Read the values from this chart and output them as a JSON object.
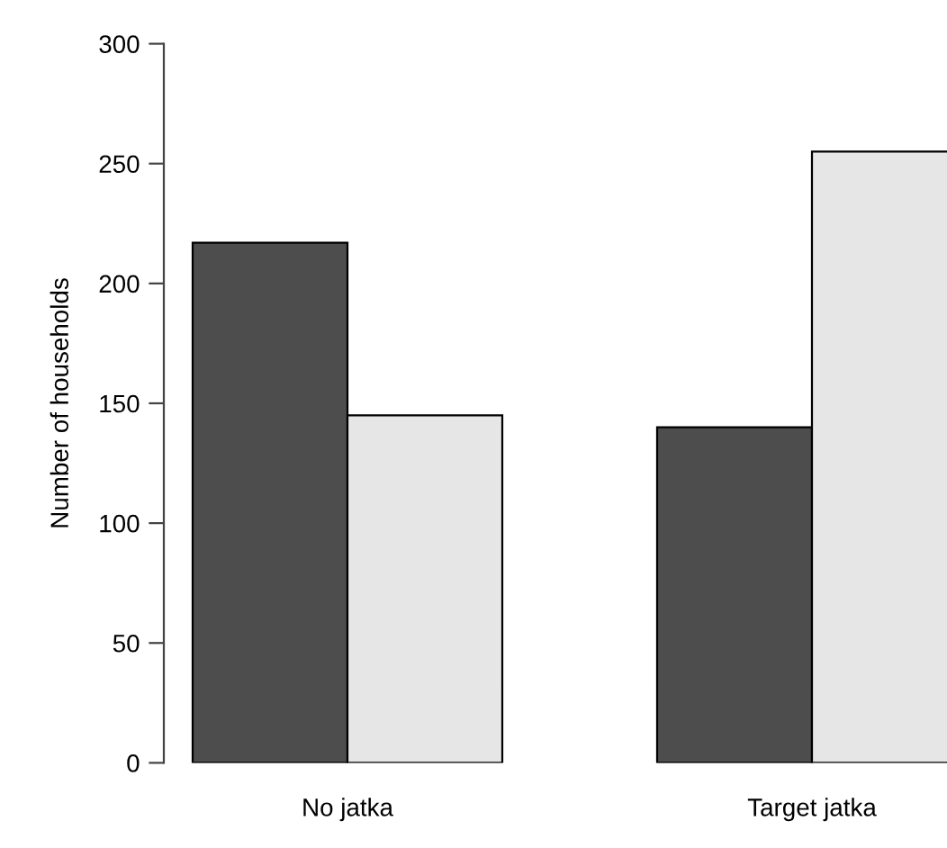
{
  "chart_data": {
    "type": "bar",
    "ylabel": "Number of households",
    "categories": [
      "No jatka",
      "Target jatka"
    ],
    "series": [
      {
        "color": "#4d4d4d",
        "values": [
          217,
          140
        ]
      },
      {
        "color": "#e6e6e6",
        "values": [
          145,
          255
        ]
      }
    ],
    "ylim": [
      0,
      300
    ],
    "yticks": [
      0,
      50,
      100,
      150,
      200,
      250,
      300
    ],
    "grid": false,
    "legend": false
  }
}
